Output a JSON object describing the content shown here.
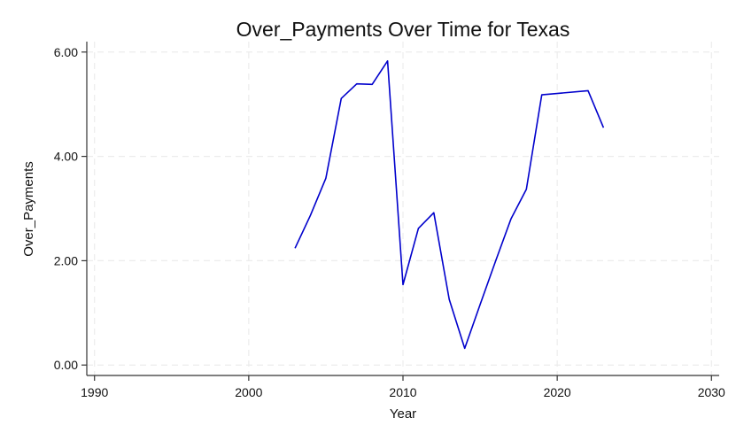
{
  "chart_data": {
    "type": "line",
    "title": "Over_Payments Over Time for Texas",
    "xlabel": "Year",
    "ylabel": "Over_Payments",
    "xlim": [
      1989.5,
      2030.5
    ],
    "ylim": [
      -0.2,
      6.2
    ],
    "xticks": [
      1990,
      2000,
      2010,
      2020,
      2030
    ],
    "xtick_labels": [
      "1990",
      "2000",
      "2010",
      "2020",
      "2030"
    ],
    "yticks": [
      0,
      2,
      4,
      6
    ],
    "ytick_labels": [
      "0.00",
      "2.00",
      "4.00",
      "6.00"
    ],
    "grid": true,
    "series": [
      {
        "name": "Over_Payments",
        "color": "#0000cc",
        "x": [
          2003,
          2004,
          2005,
          2006,
          2007,
          2008,
          2009,
          2010,
          2011,
          2012,
          2013,
          2014,
          2015,
          2016,
          2017,
          2018,
          2019,
          2022,
          2023
        ],
        "y": [
          2.24,
          2.87,
          3.58,
          5.11,
          5.39,
          5.38,
          5.83,
          1.54,
          2.62,
          2.92,
          1.26,
          0.32,
          1.16,
          1.99,
          2.8,
          3.37,
          5.18,
          5.26,
          4.55
        ]
      }
    ]
  }
}
